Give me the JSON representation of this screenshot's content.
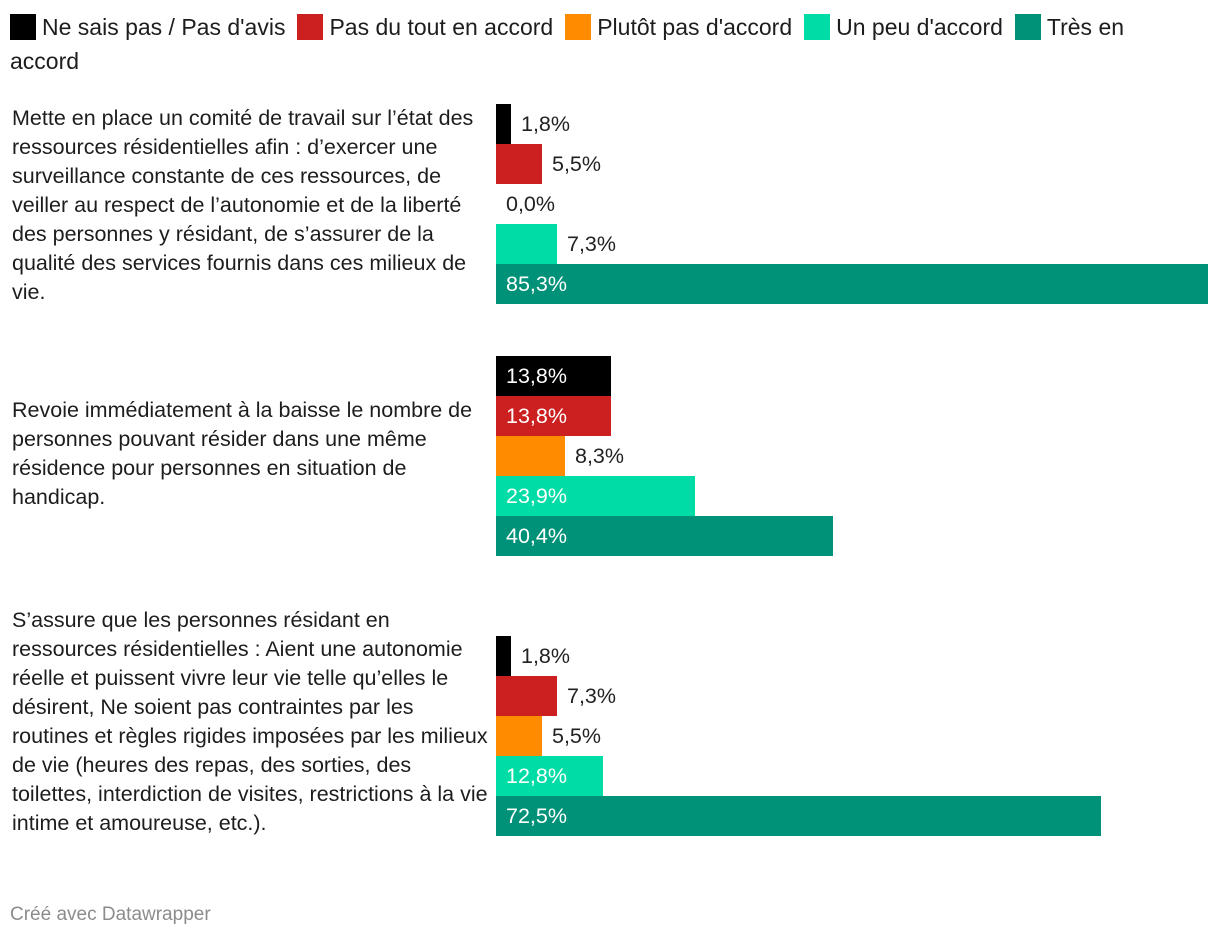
{
  "chart_data": {
    "type": "bar",
    "orientation": "horizontal",
    "title": "",
    "xlabel": "",
    "ylabel": "",
    "xlim": [
      0,
      85.3
    ],
    "grid": false,
    "legend_position": "top",
    "series": [
      {
        "name": "Ne sais pas / Pas d'avis",
        "color": "#000000",
        "values": [
          1.8,
          13.8,
          1.8
        ],
        "labels": [
          "1,8%",
          "13,8%",
          "1,8%"
        ]
      },
      {
        "name": "Pas du tout en accord",
        "color": "#cc1f1f",
        "values": [
          5.5,
          13.8,
          7.3
        ],
        "labels": [
          "5,5%",
          "13,8%",
          "7,3%"
        ]
      },
      {
        "name": "Plutôt pas d'accord",
        "color": "#ff8c00",
        "values": [
          0.0,
          8.3,
          5.5
        ],
        "labels": [
          "0,0%",
          "8,3%",
          "5,5%"
        ]
      },
      {
        "name": "Un peu d'accord",
        "color": "#00dca5",
        "values": [
          7.3,
          23.9,
          12.8
        ],
        "labels": [
          "7,3%",
          "23,9%",
          "12,8%"
        ]
      },
      {
        "name": "Très en accord",
        "color": "#009278",
        "values": [
          85.3,
          40.4,
          72.5
        ],
        "labels": [
          "85,3%",
          "40,4%",
          "72,5%"
        ]
      }
    ],
    "categories": [
      "Mette en place un comité de travail sur l’état des ressources résidentielles afin : d’exercer une surveillance constante de ces ressources, de veiller au respect de l’autonomie et de la liberté des personnes y résidant,  de s’assurer de la qualité des services fournis dans ces milieux de vie.",
      "Revoie immédiatement à la baisse le nombre de personnes pouvant résider dans une même résidence pour personnes en situation de handicap.",
      "S’assure que les personnes résidant en ressources résidentielles :  Aient une autonomie réelle et puissent vivre leur vie telle qu’elles le désirent,    Ne soient pas contraintes par les routines et règles rigides imposées par les milieux de vie (heures des repas, des sorties, des toilettes, interdiction de visites, restrictions à la vie intime et amoureuse, etc.)."
    ]
  },
  "footer": {
    "credit": "Créé avec Datawrapper"
  }
}
